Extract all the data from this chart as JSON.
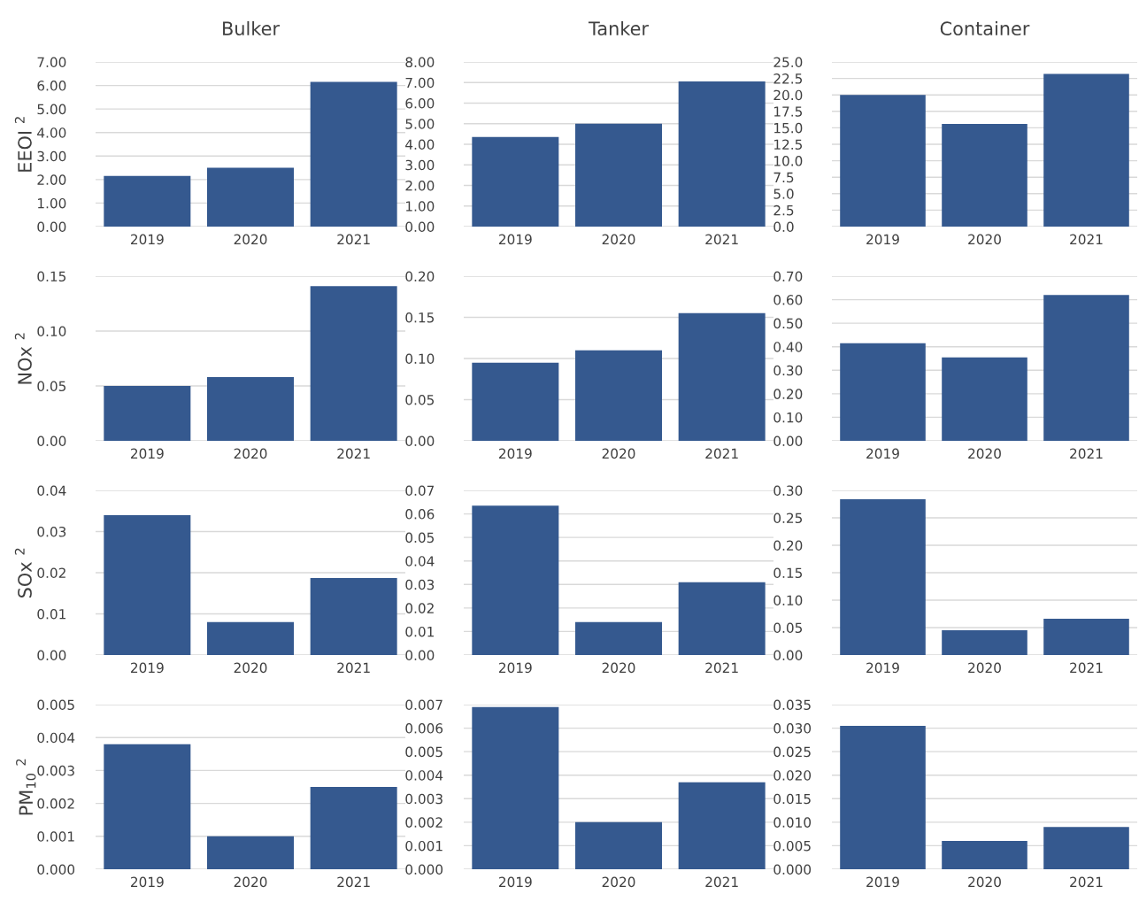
{
  "chart_data": [
    {
      "type": "bar",
      "title": "Bulker",
      "ylabel": "EEOI $^{2}$",
      "categories": [
        "2019",
        "2020",
        "2021"
      ],
      "values": [
        2.15,
        2.5,
        6.15
      ],
      "color": "#35598f",
      "ylim": [
        0,
        7
      ],
      "yticks": [
        {
          "value": 0,
          "label": "0.00"
        },
        {
          "value": 1,
          "label": "1.00"
        },
        {
          "value": 2,
          "label": "2.00"
        },
        {
          "value": 3,
          "label": "3.00"
        },
        {
          "value": 4,
          "label": "4.00"
        },
        {
          "value": 5,
          "label": "5.00"
        },
        {
          "value": 6,
          "label": "6.00"
        },
        {
          "value": 7,
          "label": "7.00"
        }
      ],
      "grid": "y"
    },
    {
      "type": "bar",
      "title": "Tanker",
      "categories": [
        "2019",
        "2020",
        "2021"
      ],
      "values": [
        4.35,
        5.0,
        7.05
      ],
      "color": "#35598f",
      "ylim": [
        0,
        8
      ],
      "yticks": [
        {
          "value": 0,
          "label": "0.00"
        },
        {
          "value": 1,
          "label": "1.00"
        },
        {
          "value": 2,
          "label": "2.00"
        },
        {
          "value": 3,
          "label": "3.00"
        },
        {
          "value": 4,
          "label": "4.00"
        },
        {
          "value": 5,
          "label": "5.00"
        },
        {
          "value": 6,
          "label": "6.00"
        },
        {
          "value": 7,
          "label": "7.00"
        },
        {
          "value": 8,
          "label": "8.00"
        }
      ],
      "grid": "y"
    },
    {
      "type": "bar",
      "title": "Container",
      "categories": [
        "2019",
        "2020",
        "2021"
      ],
      "values": [
        20.0,
        15.6,
        23.2
      ],
      "color": "#35598f",
      "ylim": [
        0,
        25
      ],
      "yticks": [
        {
          "value": 0,
          "label": "0.0"
        },
        2.5,
        {
          "value": 5,
          "label": "5.0"
        },
        7.5,
        {
          "value": 10,
          "label": "10.0"
        },
        12.5,
        {
          "value": 15,
          "label": "15.0"
        },
        17.5,
        {
          "value": 20,
          "label": "20.0"
        },
        22.5,
        {
          "value": 25,
          "label": "25.0"
        }
      ],
      "grid": "y"
    },
    {
      "type": "bar",
      "ylabel": "NOx $^{2}$",
      "categories": [
        "2019",
        "2020",
        "2021"
      ],
      "values": [
        0.05,
        0.058,
        0.141
      ],
      "color": "#35598f",
      "ylim": [
        0,
        0.15
      ],
      "yticks": [
        {
          "value": 0,
          "label": "0.00"
        },
        0.05,
        {
          "value": 0.1,
          "label": "0.10"
        },
        0.15
      ],
      "grid": "y"
    },
    {
      "type": "bar",
      "categories": [
        "2019",
        "2020",
        "2021"
      ],
      "values": [
        0.095,
        0.11,
        0.155
      ],
      "color": "#35598f",
      "ylim": [
        0,
        0.2
      ],
      "yticks": [
        {
          "value": 0,
          "label": "0.00"
        },
        0.05,
        {
          "value": 0.1,
          "label": "0.10"
        },
        0.15,
        {
          "value": 0.2,
          "label": "0.20"
        }
      ],
      "grid": "y"
    },
    {
      "type": "bar",
      "categories": [
        "2019",
        "2020",
        "2021"
      ],
      "values": [
        0.415,
        0.355,
        0.62
      ],
      "color": "#35598f",
      "ylim": [
        0,
        0.7
      ],
      "yticks": [
        {
          "value": 0,
          "label": "0.00"
        },
        {
          "value": 0.1,
          "label": "0.10"
        },
        {
          "value": 0.2,
          "label": "0.20"
        },
        {
          "value": 0.3,
          "label": "0.30"
        },
        {
          "value": 0.4,
          "label": "0.40"
        },
        {
          "value": 0.5,
          "label": "0.50"
        },
        {
          "value": 0.6,
          "label": "0.60"
        },
        {
          "value": 0.7,
          "label": "0.70"
        }
      ],
      "grid": "y"
    },
    {
      "type": "bar",
      "ylabel": "SOx $^{2}$",
      "categories": [
        "2019",
        "2020",
        "2021"
      ],
      "values": [
        0.034,
        0.008,
        0.0187
      ],
      "color": "#35598f",
      "ylim": [
        0,
        0.04
      ],
      "yticks": [
        {
          "value": 0,
          "label": "0.00"
        },
        0.01,
        0.02,
        0.03,
        0.04
      ],
      "grid": "y"
    },
    {
      "type": "bar",
      "categories": [
        "2019",
        "2020",
        "2021"
      ],
      "values": [
        0.0635,
        0.014,
        0.031
      ],
      "color": "#35598f",
      "ylim": [
        0,
        0.07
      ],
      "yticks": [
        {
          "value": 0,
          "label": "0.00"
        },
        0.01,
        0.02,
        0.03,
        0.04,
        0.05,
        0.06,
        0.07
      ],
      "grid": "y"
    },
    {
      "type": "bar",
      "categories": [
        "2019",
        "2020",
        "2021"
      ],
      "values": [
        0.284,
        0.045,
        0.066
      ],
      "color": "#35598f",
      "ylim": [
        0,
        0.3
      ],
      "yticks": [
        {
          "value": 0,
          "label": "0.00"
        },
        0.05,
        {
          "value": 0.1,
          "label": "0.10"
        },
        0.15,
        {
          "value": 0.2,
          "label": "0.20"
        },
        0.25,
        {
          "value": 0.3,
          "label": "0.30"
        }
      ],
      "grid": "y"
    },
    {
      "type": "bar",
      "ylabel": "PM$_{10}$ $^{2}$",
      "categories": [
        "2019",
        "2020",
        "2021"
      ],
      "values": [
        0.0038,
        0.001,
        0.0025
      ],
      "color": "#35598f",
      "ylim": [
        0,
        0.005
      ],
      "yticks": [
        {
          "value": 0,
          "label": "0.000"
        },
        0.001,
        0.002,
        0.003,
        0.004,
        0.005
      ],
      "grid": "y"
    },
    {
      "type": "bar",
      "categories": [
        "2019",
        "2020",
        "2021"
      ],
      "values": [
        0.0069,
        0.002,
        0.0037
      ],
      "color": "#35598f",
      "ylim": [
        0,
        0.007
      ],
      "yticks": [
        {
          "value": 0,
          "label": "0.000"
        },
        0.001,
        0.002,
        0.003,
        0.004,
        0.005,
        0.006,
        0.007
      ],
      "grid": "y"
    },
    {
      "type": "bar",
      "categories": [
        "2019",
        "2020",
        "2021"
      ],
      "values": [
        0.0305,
        0.006,
        0.009
      ],
      "color": "#35598f",
      "ylim": [
        0,
        0.035
      ],
      "yticks": [
        {
          "value": 0,
          "label": "0.000"
        },
        0.005,
        {
          "value": 0.01,
          "label": "0.010"
        },
        0.015,
        {
          "value": 0.02,
          "label": "0.020"
        },
        0.025,
        {
          "value": 0.03,
          "label": "0.030"
        },
        0.035
      ],
      "grid": "y"
    }
  ]
}
